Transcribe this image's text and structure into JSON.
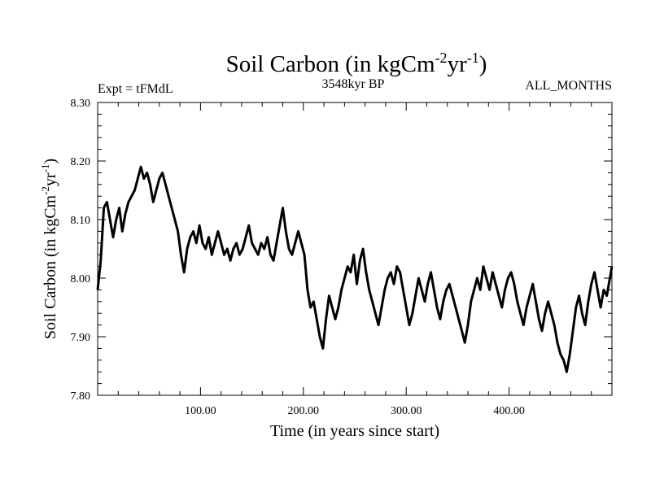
{
  "chart_data": {
    "type": "line",
    "title": {
      "main": "Soil Carbon (in kgCm",
      "sup1": "-2",
      "mid": "yr",
      "sup2": "-1",
      "end": ")"
    },
    "subtitle_left": "Expt = tFMdL",
    "subtitle_center": "3548kyr BP",
    "subtitle_right": "ALL_MONTHS",
    "xlabel": "Time (in years since start)",
    "ylabel": {
      "main": "Soil Carbon (in kgCm",
      "sup1": "-2",
      "mid": "yr",
      "sup2": "-1",
      "end": ")"
    },
    "xlim": [
      0,
      500
    ],
    "ylim": [
      7.8,
      8.3
    ],
    "x_ticks": [
      {
        "value": 100,
        "label": "100.00"
      },
      {
        "value": 200,
        "label": "200.00"
      },
      {
        "value": 300,
        "label": "300.00"
      },
      {
        "value": 400,
        "label": "400.00"
      }
    ],
    "y_ticks": [
      {
        "value": 7.8,
        "label": "7.80"
      },
      {
        "value": 7.9,
        "label": "7.90"
      },
      {
        "value": 8.0,
        "label": "8.00"
      },
      {
        "value": 8.1,
        "label": "8.10"
      },
      {
        "value": 8.2,
        "label": "8.20"
      },
      {
        "value": 8.3,
        "label": "8.30"
      }
    ],
    "series": [
      {
        "name": "Soil Carbon",
        "color": "#000000",
        "points": [
          [
            0,
            7.98
          ],
          [
            3,
            8.03
          ],
          [
            6,
            8.12
          ],
          [
            9,
            8.13
          ],
          [
            12,
            8.1
          ],
          [
            15,
            8.07
          ],
          [
            18,
            8.1
          ],
          [
            21,
            8.12
          ],
          [
            24,
            8.08
          ],
          [
            27,
            8.11
          ],
          [
            30,
            8.13
          ],
          [
            33,
            8.14
          ],
          [
            36,
            8.15
          ],
          [
            39,
            8.17
          ],
          [
            42,
            8.19
          ],
          [
            45,
            8.17
          ],
          [
            48,
            8.18
          ],
          [
            51,
            8.16
          ],
          [
            54,
            8.13
          ],
          [
            57,
            8.15
          ],
          [
            60,
            8.17
          ],
          [
            63,
            8.18
          ],
          [
            66,
            8.16
          ],
          [
            69,
            8.14
          ],
          [
            72,
            8.12
          ],
          [
            75,
            8.1
          ],
          [
            78,
            8.08
          ],
          [
            81,
            8.04
          ],
          [
            84,
            8.01
          ],
          [
            87,
            8.05
          ],
          [
            90,
            8.07
          ],
          [
            93,
            8.08
          ],
          [
            96,
            8.06
          ],
          [
            99,
            8.09
          ],
          [
            102,
            8.06
          ],
          [
            105,
            8.05
          ],
          [
            108,
            8.07
          ],
          [
            111,
            8.04
          ],
          [
            114,
            8.06
          ],
          [
            117,
            8.08
          ],
          [
            120,
            8.06
          ],
          [
            123,
            8.04
          ],
          [
            126,
            8.05
          ],
          [
            129,
            8.03
          ],
          [
            132,
            8.05
          ],
          [
            135,
            8.06
          ],
          [
            138,
            8.04
          ],
          [
            141,
            8.05
          ],
          [
            144,
            8.07
          ],
          [
            147,
            8.09
          ],
          [
            150,
            8.06
          ],
          [
            153,
            8.05
          ],
          [
            156,
            8.04
          ],
          [
            159,
            8.06
          ],
          [
            162,
            8.05
          ],
          [
            165,
            8.07
          ],
          [
            168,
            8.04
          ],
          [
            171,
            8.03
          ],
          [
            174,
            8.06
          ],
          [
            177,
            8.09
          ],
          [
            180,
            8.12
          ],
          [
            183,
            8.08
          ],
          [
            186,
            8.05
          ],
          [
            189,
            8.04
          ],
          [
            192,
            8.06
          ],
          [
            195,
            8.08
          ],
          [
            198,
            8.06
          ],
          [
            201,
            8.04
          ],
          [
            204,
            7.98
          ],
          [
            207,
            7.95
          ],
          [
            210,
            7.96
          ],
          [
            213,
            7.93
          ],
          [
            216,
            7.9
          ],
          [
            219,
            7.88
          ],
          [
            222,
            7.93
          ],
          [
            225,
            7.97
          ],
          [
            228,
            7.95
          ],
          [
            231,
            7.93
          ],
          [
            234,
            7.95
          ],
          [
            237,
            7.98
          ],
          [
            240,
            8.0
          ],
          [
            243,
            8.02
          ],
          [
            246,
            8.01
          ],
          [
            249,
            8.04
          ],
          [
            252,
            7.99
          ],
          [
            255,
            8.03
          ],
          [
            258,
            8.05
          ],
          [
            261,
            8.01
          ],
          [
            264,
            7.98
          ],
          [
            267,
            7.96
          ],
          [
            270,
            7.94
          ],
          [
            273,
            7.92
          ],
          [
            276,
            7.95
          ],
          [
            279,
            7.98
          ],
          [
            282,
            8.0
          ],
          [
            285,
            8.01
          ],
          [
            288,
            7.99
          ],
          [
            291,
            8.02
          ],
          [
            294,
            8.01
          ],
          [
            297,
            7.98
          ],
          [
            300,
            7.95
          ],
          [
            303,
            7.92
          ],
          [
            306,
            7.94
          ],
          [
            309,
            7.97
          ],
          [
            312,
            8.0
          ],
          [
            315,
            7.98
          ],
          [
            318,
            7.96
          ],
          [
            321,
            7.99
          ],
          [
            324,
            8.01
          ],
          [
            327,
            7.98
          ],
          [
            330,
            7.95
          ],
          [
            333,
            7.93
          ],
          [
            336,
            7.96
          ],
          [
            339,
            7.98
          ],
          [
            342,
            7.99
          ],
          [
            345,
            7.97
          ],
          [
            348,
            7.95
          ],
          [
            351,
            7.93
          ],
          [
            354,
            7.91
          ],
          [
            357,
            7.89
          ],
          [
            360,
            7.92
          ],
          [
            363,
            7.96
          ],
          [
            366,
            7.98
          ],
          [
            369,
            8.0
          ],
          [
            372,
            7.98
          ],
          [
            375,
            8.02
          ],
          [
            378,
            8.0
          ],
          [
            381,
            7.98
          ],
          [
            384,
            8.01
          ],
          [
            387,
            7.99
          ],
          [
            390,
            7.97
          ],
          [
            393,
            7.95
          ],
          [
            396,
            7.98
          ],
          [
            399,
            8.0
          ],
          [
            402,
            8.01
          ],
          [
            405,
            7.99
          ],
          [
            408,
            7.96
          ],
          [
            411,
            7.94
          ],
          [
            414,
            7.92
          ],
          [
            417,
            7.95
          ],
          [
            420,
            7.97
          ],
          [
            423,
            7.99
          ],
          [
            426,
            7.96
          ],
          [
            429,
            7.93
          ],
          [
            432,
            7.91
          ],
          [
            435,
            7.94
          ],
          [
            438,
            7.96
          ],
          [
            441,
            7.94
          ],
          [
            444,
            7.92
          ],
          [
            447,
            7.89
          ],
          [
            450,
            7.87
          ],
          [
            453,
            7.86
          ],
          [
            456,
            7.84
          ],
          [
            459,
            7.87
          ],
          [
            462,
            7.91
          ],
          [
            465,
            7.95
          ],
          [
            468,
            7.97
          ],
          [
            471,
            7.94
          ],
          [
            474,
            7.92
          ],
          [
            477,
            7.96
          ],
          [
            480,
            7.99
          ],
          [
            483,
            8.01
          ],
          [
            486,
            7.98
          ],
          [
            489,
            7.95
          ],
          [
            492,
            7.98
          ],
          [
            495,
            7.97
          ],
          [
            498,
            8.0
          ],
          [
            500,
            8.02
          ]
        ]
      }
    ]
  }
}
